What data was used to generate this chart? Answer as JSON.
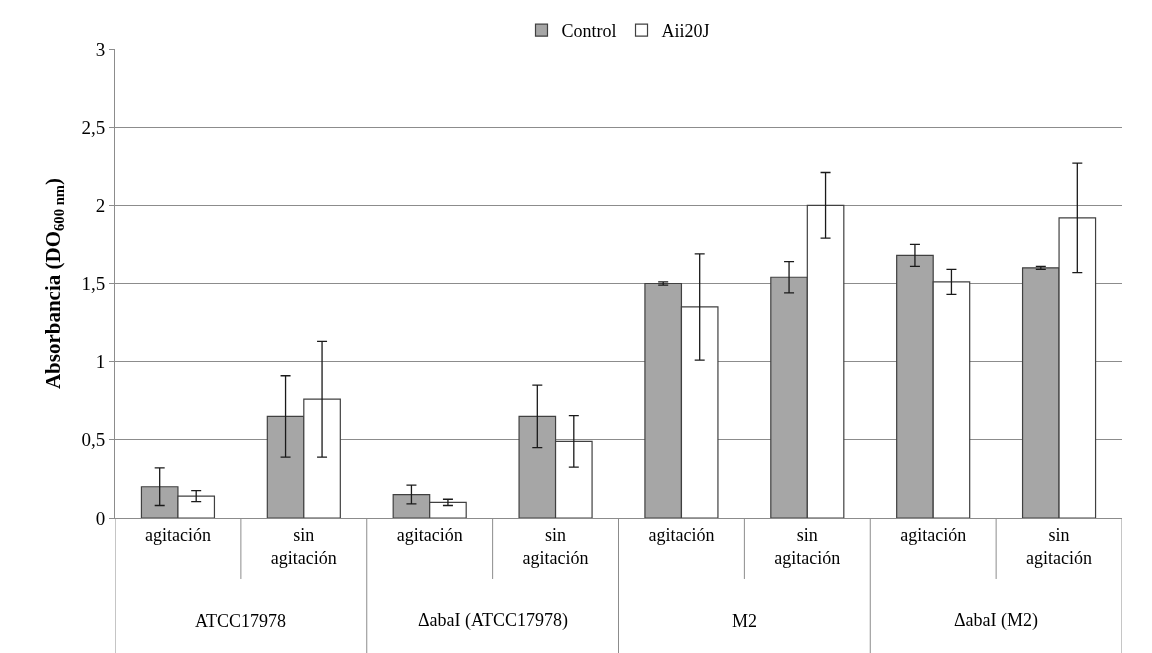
{
  "chart_data": {
    "type": "bar",
    "ylabel": "Absorbancia (DO$_{600 nm}$)",
    "categories": [
      "agitación",
      "sin agitación",
      "agitación",
      "sin agitación",
      "agitación",
      "sin agitación",
      "agitación",
      "sin agitación"
    ],
    "annotations": [
      "ATCC17978",
      "ΔabaI (ATCC17978)",
      "M2",
      "ΔabaI (M2)"
    ],
    "series": [
      {
        "name": "Control",
        "color": "#a6a6a6",
        "values": [
          0.2,
          0.65,
          0.15,
          0.65,
          1.5,
          1.54,
          1.68,
          1.6
        ],
        "errors": [
          0.12,
          0.26,
          0.06,
          0.2,
          0.01,
          0.1,
          0.07,
          0.01
        ]
      },
      {
        "name": "Aii20J",
        "color": "#ffffff",
        "values": [
          0.14,
          0.76,
          0.1,
          0.49,
          1.35,
          2.0,
          1.51,
          1.92
        ],
        "errors": [
          0.035,
          0.37,
          0.02,
          0.165,
          0.34,
          0.21,
          0.08,
          0.35
        ]
      }
    ],
    "ylim": [
      0,
      3
    ],
    "yticks": [
      0,
      {
        "value": 0.5,
        "label": "0,5"
      },
      1,
      {
        "value": 1.5,
        "label": "1,5"
      },
      2,
      {
        "value": 2.5,
        "label": "2,5"
      },
      3
    ],
    "grid": "y",
    "legend": "top"
  }
}
